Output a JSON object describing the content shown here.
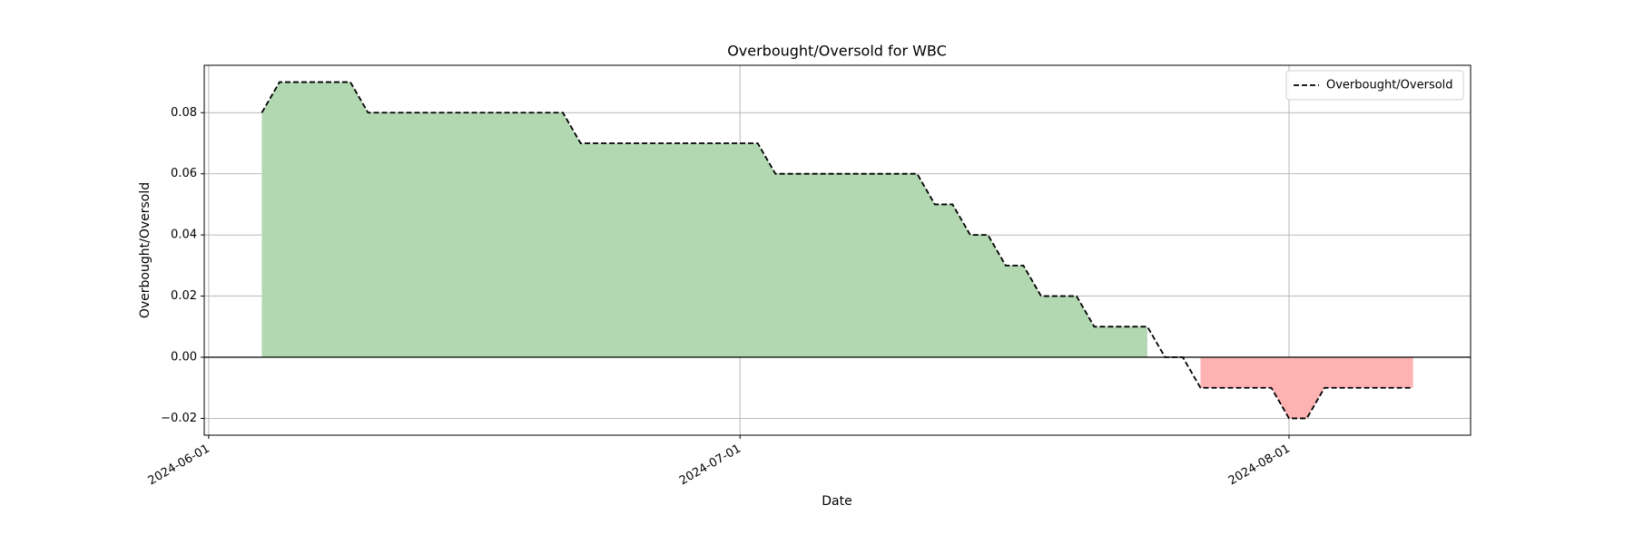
{
  "chart_data": {
    "type": "line",
    "title": "Overbought/Oversold for WBC",
    "xlabel": "Date",
    "ylabel": "Overbought/Oversold",
    "x": [
      "2024-06-04",
      "2024-06-05",
      "2024-06-06",
      "2024-06-07",
      "2024-06-08",
      "2024-06-09",
      "2024-06-10",
      "2024-06-11",
      "2024-06-12",
      "2024-06-13",
      "2024-06-14",
      "2024-06-15",
      "2024-06-16",
      "2024-06-17",
      "2024-06-18",
      "2024-06-19",
      "2024-06-20",
      "2024-06-21",
      "2024-06-22",
      "2024-06-23",
      "2024-06-24",
      "2024-06-25",
      "2024-06-26",
      "2024-06-27",
      "2024-06-28",
      "2024-06-29",
      "2024-06-30",
      "2024-07-01",
      "2024-07-02",
      "2024-07-03",
      "2024-07-04",
      "2024-07-05",
      "2024-07-06",
      "2024-07-07",
      "2024-07-08",
      "2024-07-09",
      "2024-07-10",
      "2024-07-11",
      "2024-07-12",
      "2024-07-13",
      "2024-07-14",
      "2024-07-15",
      "2024-07-16",
      "2024-07-17",
      "2024-07-18",
      "2024-07-19",
      "2024-07-20",
      "2024-07-21",
      "2024-07-22",
      "2024-07-23",
      "2024-07-24",
      "2024-07-25",
      "2024-07-26",
      "2024-07-27",
      "2024-07-28",
      "2024-07-29",
      "2024-07-30",
      "2024-07-31",
      "2024-08-01",
      "2024-08-02",
      "2024-08-03",
      "2024-08-04",
      "2024-08-05",
      "2024-08-06",
      "2024-08-07",
      "2024-08-08"
    ],
    "series": [
      {
        "name": "Overbought/Oversold",
        "color": "#000000",
        "linestyle": "dashed",
        "values": [
          0.08,
          0.09,
          0.09,
          0.09,
          0.09,
          0.09,
          0.08,
          0.08,
          0.08,
          0.08,
          0.08,
          0.08,
          0.08,
          0.08,
          0.08,
          0.08,
          0.08,
          0.08,
          0.07,
          0.07,
          0.07,
          0.07,
          0.07,
          0.07,
          0.07,
          0.07,
          0.07,
          0.07,
          0.07,
          0.06,
          0.06,
          0.06,
          0.06,
          0.06,
          0.06,
          0.06,
          0.06,
          0.06,
          0.05,
          0.05,
          0.04,
          0.04,
          0.03,
          0.03,
          0.02,
          0.02,
          0.02,
          0.01,
          0.01,
          0.01,
          0.01,
          0,
          0,
          -0.01,
          -0.01,
          -0.01,
          -0.01,
          -0.01,
          -0.02,
          -0.02,
          -0.01,
          -0.01,
          -0.01,
          -0.01,
          -0.01,
          -0.01
        ]
      }
    ],
    "fill_above_color": "#b2d8b2",
    "fill_below_color": "#ffb2b2",
    "xlim": [
      "2024-05-31T18:00",
      "2024-08-11T06:00"
    ],
    "xticks": [
      "2024-06-01",
      "2024-07-01",
      "2024-08-01"
    ],
    "ylim": [
      -0.0255,
      0.0955
    ],
    "yticks": [
      {
        "value": -0.02,
        "label": "−0.02"
      },
      {
        "value": 0,
        "label": "0.00"
      },
      0.02,
      0.04,
      0.06,
      0.08
    ],
    "grid": true,
    "legend": "upper right"
  }
}
